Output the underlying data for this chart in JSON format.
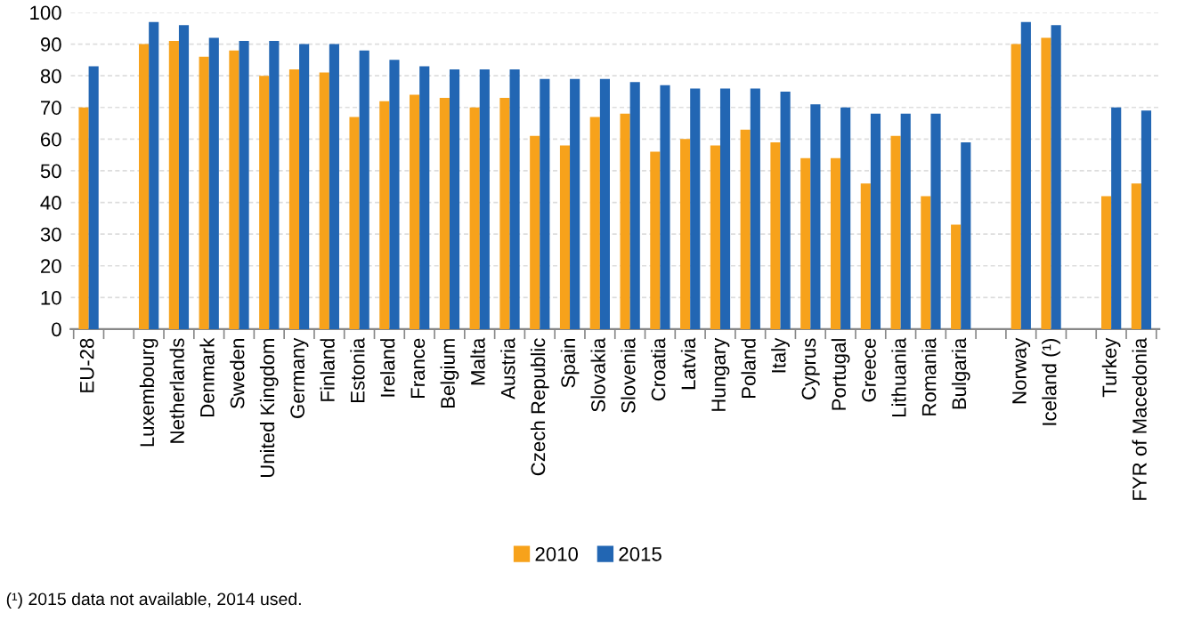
{
  "chart_data": {
    "type": "bar",
    "categories": [
      "EU-28",
      null,
      "Luxembourg",
      "Netherlands",
      "Denmark",
      "Sweden",
      "United Kingdom",
      "Germany",
      "Finland",
      "Estonia",
      "Ireland",
      "France",
      "Belgium",
      "Malta",
      "Austria",
      "Czech Republic",
      "Spain",
      "Slovakia",
      "Slovenia",
      "Croatia",
      "Latvia",
      "Hungary",
      "Poland",
      "Italy",
      "Cyprus",
      "Portugal",
      "Greece",
      "Lithuania",
      "Romania",
      "Bulgaria",
      null,
      "Norway",
      "Iceland (¹)",
      null,
      "Turkey",
      "FYR of Macedonia"
    ],
    "series": [
      {
        "name": "2010",
        "color": "#f7a21b",
        "values": [
          70,
          null,
          90,
          91,
          86,
          88,
          80,
          82,
          81,
          67,
          72,
          74,
          73,
          70,
          73,
          61,
          58,
          67,
          68,
          56,
          60,
          58,
          63,
          59,
          54,
          54,
          46,
          61,
          42,
          33,
          null,
          90,
          92,
          null,
          42,
          46
        ]
      },
      {
        "name": "2015",
        "color": "#2266b3",
        "values": [
          83,
          null,
          97,
          96,
          92,
          91,
          91,
          90,
          90,
          88,
          85,
          83,
          82,
          82,
          82,
          79,
          79,
          79,
          78,
          77,
          76,
          76,
          76,
          75,
          71,
          70,
          68,
          68,
          68,
          59,
          null,
          97,
          96,
          null,
          70,
          69
        ]
      }
    ],
    "ylim": [
      0,
      100
    ],
    "yticks": [
      0,
      10,
      20,
      30,
      40,
      50,
      60,
      70,
      80,
      90,
      100
    ],
    "grid": "y",
    "legend": "bottom",
    "annotations": [
      "(¹) 2015 data not available, 2014 used."
    ]
  }
}
